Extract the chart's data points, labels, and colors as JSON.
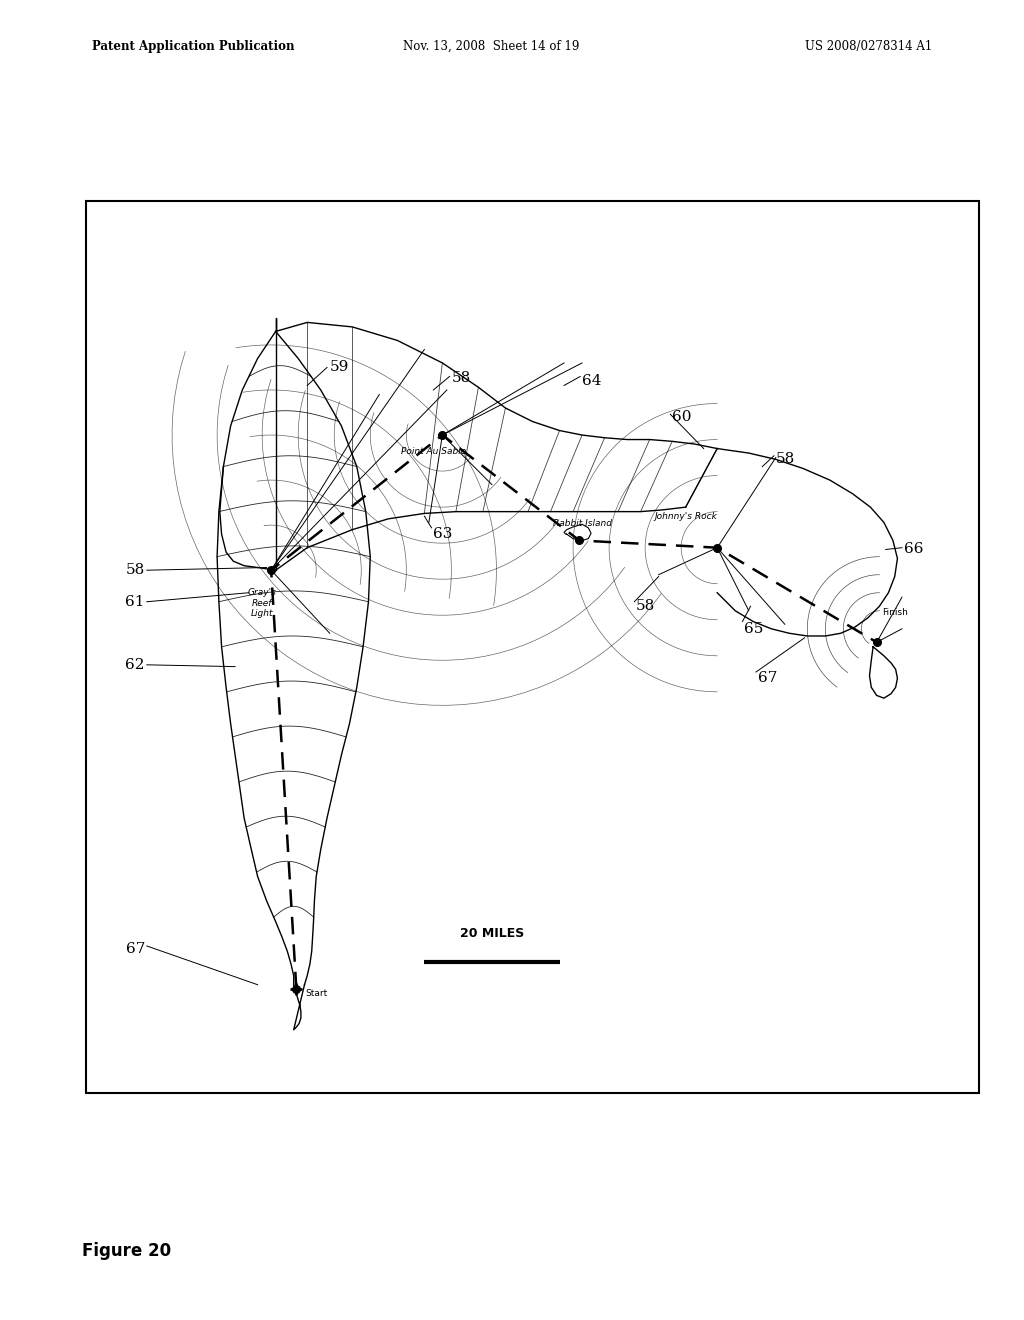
{
  "title_left": "Patent Application Publication",
  "title_mid": "Nov. 13, 2008  Sheet 14 of 19",
  "title_right": "US 2008/0278314 A1",
  "figure_label": "Figure 20",
  "scale_bar_text": "20 MILES",
  "background_color": "#ffffff"
}
